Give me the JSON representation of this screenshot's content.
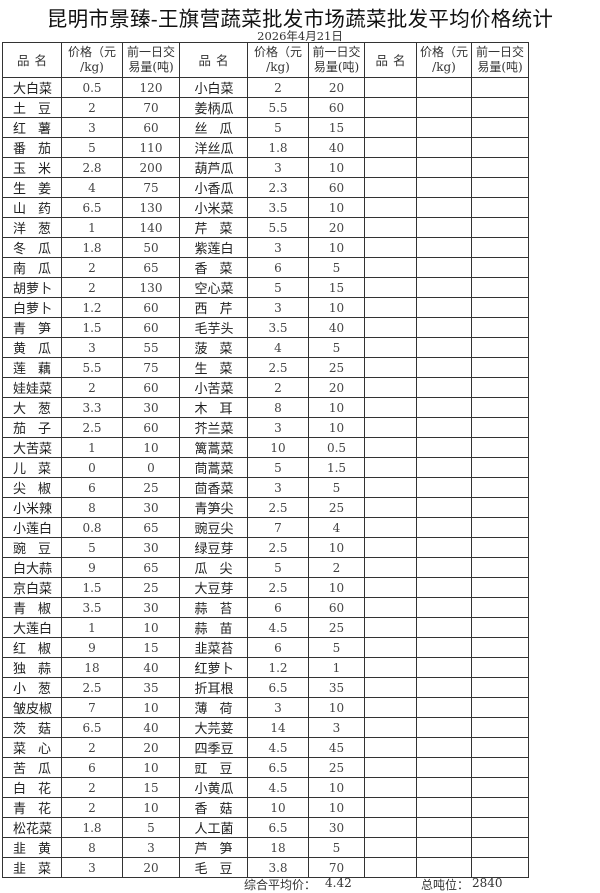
{
  "title": "昆明市景臻-王旗营蔬菜批发市场蔬菜批发平均价格统计",
  "date": "2026年4月21日",
  "headers": {
    "name": "品名",
    "price": [
      "价格（元",
      "/kg)"
    ],
    "volume": [
      "前一日交",
      "易量(吨)"
    ]
  },
  "group1": [
    [
      "大白菜",
      "0.5",
      "120"
    ],
    [
      "土豆",
      "2",
      "70"
    ],
    [
      "红薯",
      "3",
      "60"
    ],
    [
      "番茄",
      "5",
      "110"
    ],
    [
      "玉米",
      "2.8",
      "200"
    ],
    [
      "生姜",
      "4",
      "75"
    ],
    [
      "山药",
      "6.5",
      "130"
    ],
    [
      "洋葱",
      "1",
      "140"
    ],
    [
      "冬瓜",
      "1.8",
      "50"
    ],
    [
      "南瓜",
      "2",
      "65"
    ],
    [
      "胡萝卜",
      "2",
      "130"
    ],
    [
      "白萝卜",
      "1.2",
      "60"
    ],
    [
      "青笋",
      "1.5",
      "60"
    ],
    [
      "黄瓜",
      "3",
      "55"
    ],
    [
      "莲藕",
      "5.5",
      "75"
    ],
    [
      "娃娃菜",
      "2",
      "60"
    ],
    [
      "大葱",
      "3.3",
      "30"
    ],
    [
      "茄子",
      "2.5",
      "60"
    ],
    [
      "大苦菜",
      "1",
      "10"
    ],
    [
      "儿菜",
      "0",
      "0"
    ],
    [
      "尖椒",
      "6",
      "25"
    ],
    [
      "小米辣",
      "8",
      "30"
    ],
    [
      "小莲白",
      "0.8",
      "65"
    ],
    [
      "豌豆",
      "5",
      "30"
    ],
    [
      "白大蒜",
      "9",
      "65"
    ],
    [
      "京白菜",
      "1.5",
      "25"
    ],
    [
      "青椒",
      "3.5",
      "30"
    ],
    [
      "大莲白",
      "1",
      "10"
    ],
    [
      "红椒",
      "9",
      "15"
    ],
    [
      "独蒜",
      "18",
      "40"
    ],
    [
      "小葱",
      "2.5",
      "35"
    ],
    [
      "皱皮椒",
      "7",
      "10"
    ],
    [
      "茨菇",
      "6.5",
      "40"
    ],
    [
      "菜心",
      "2",
      "20"
    ],
    [
      "苦瓜",
      "6",
      "10"
    ],
    [
      "白花",
      "2",
      "15"
    ],
    [
      "青花",
      "2",
      "10"
    ],
    [
      "松花菜",
      "1.8",
      "5"
    ],
    [
      "韭黄",
      "8",
      "3"
    ],
    [
      "韭菜",
      "3",
      "20"
    ]
  ],
  "group2": [
    [
      "小白菜",
      "2",
      "20"
    ],
    [
      "姜柄瓜",
      "5.5",
      "60"
    ],
    [
      "丝瓜",
      "5",
      "15"
    ],
    [
      "洋丝瓜",
      "1.8",
      "40"
    ],
    [
      "葫芦瓜",
      "3",
      "10"
    ],
    [
      "小香瓜",
      "2.3",
      "60"
    ],
    [
      "小米菜",
      "3.5",
      "10"
    ],
    [
      "芹菜",
      "5.5",
      "20"
    ],
    [
      "紫莲白",
      "3",
      "10"
    ],
    [
      "香菜",
      "6",
      "5"
    ],
    [
      "空心菜",
      "5",
      "15"
    ],
    [
      "西芹",
      "3",
      "10"
    ],
    [
      "毛芋头",
      "3.5",
      "40"
    ],
    [
      "菠菜",
      "4",
      "5"
    ],
    [
      "生菜",
      "2.5",
      "25"
    ],
    [
      "小苦菜",
      "2",
      "20"
    ],
    [
      "木耳",
      "8",
      "10"
    ],
    [
      "芥兰菜",
      "3",
      "10"
    ],
    [
      "篱蒿菜",
      "10",
      "0.5"
    ],
    [
      "茼蒿菜",
      "5",
      "1.5"
    ],
    [
      "茴香菜",
      "3",
      "5"
    ],
    [
      "青笋尖",
      "2.5",
      "25"
    ],
    [
      "豌豆尖",
      "7",
      "4"
    ],
    [
      "绿豆芽",
      "2.5",
      "10"
    ],
    [
      "瓜尖",
      "5",
      "2"
    ],
    [
      "大豆芽",
      "2.5",
      "10"
    ],
    [
      "蒜苔",
      "6",
      "60"
    ],
    [
      "蒜苗",
      "4.5",
      "25"
    ],
    [
      "韭菜苔",
      "6",
      "5"
    ],
    [
      "红萝卜",
      "1.2",
      "1"
    ],
    [
      "折耳根",
      "6.5",
      "35"
    ],
    [
      "薄荷",
      "3",
      "10"
    ],
    [
      "大芫荽",
      "14",
      "3"
    ],
    [
      "四季豆",
      "4.5",
      "45"
    ],
    [
      "豇豆",
      "6.5",
      "25"
    ],
    [
      "小黄瓜",
      "4.5",
      "10"
    ],
    [
      "香菇",
      "10",
      "10"
    ],
    [
      "人工菌",
      "6.5",
      "30"
    ],
    [
      "芦笋",
      "18",
      "5"
    ],
    [
      "毛豆",
      "3.8",
      "70"
    ]
  ],
  "footer": {
    "avg_label": "综合平均价：",
    "avg_value": "4.42",
    "total_label": "总吨位：",
    "total_value": "2840"
  }
}
